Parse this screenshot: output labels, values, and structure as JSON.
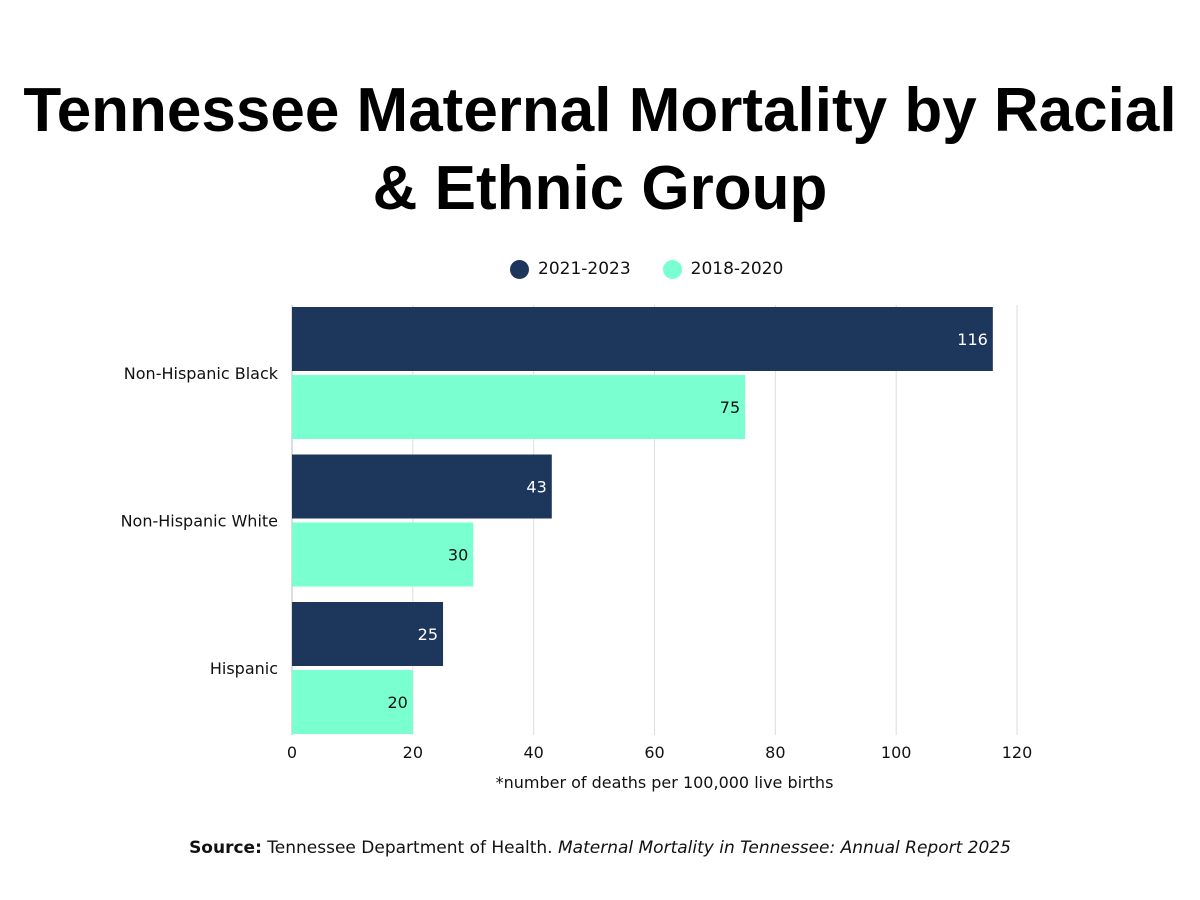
{
  "chart_data": {
    "type": "bar",
    "orientation": "horizontal",
    "title": "Tennessee Maternal Mortality by Racial & Ethnic Group",
    "categories": [
      "Non-Hispanic Black",
      "Non-Hispanic White",
      "Hispanic"
    ],
    "series": [
      {
        "name": "2021-2023",
        "color": "#1c365c",
        "values": [
          116,
          43,
          25
        ]
      },
      {
        "name": "2018-2020",
        "color": "#7affd0",
        "values": [
          75,
          30,
          20
        ]
      }
    ],
    "xlabel": "*number of deaths per 100,000 live births",
    "xlim": [
      0,
      120
    ],
    "xticks": [
      0,
      20,
      40,
      60,
      80,
      100,
      120
    ],
    "grid": "vertical",
    "legend": "top",
    "data_labels": true
  },
  "source": {
    "label": "Source:",
    "text": "Tennessee Department of Health.",
    "report": "Maternal Mortality in Tennessee: Annual Report 2025"
  }
}
